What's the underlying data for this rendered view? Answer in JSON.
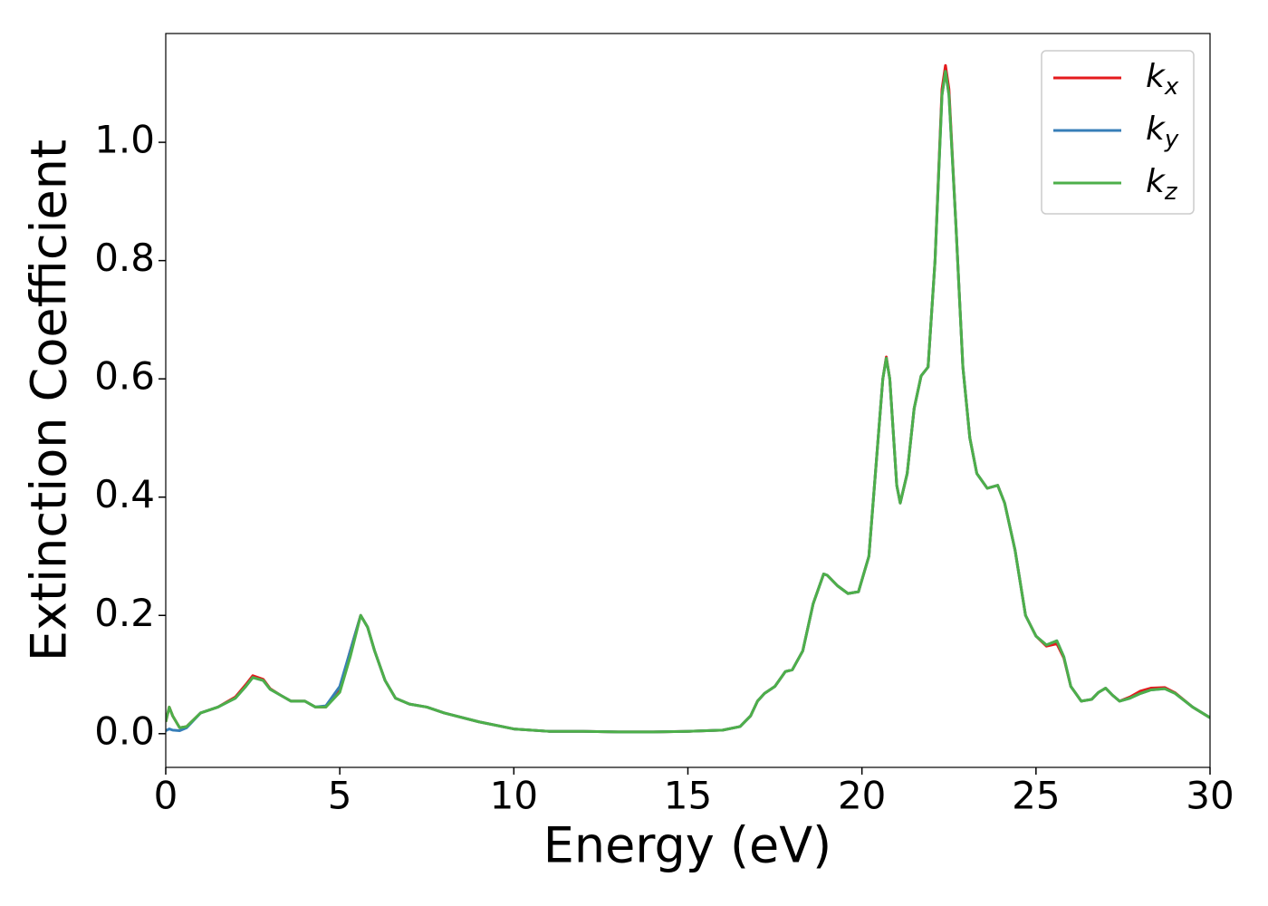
{
  "chart_data": {
    "type": "line",
    "x_label": "Energy (eV)",
    "y_label": "Extinction Coefficient",
    "x": [
      0,
      0.1,
      0.2,
      0.4,
      0.6,
      1.0,
      1.5,
      2.0,
      2.3,
      2.5,
      2.8,
      3.0,
      3.3,
      3.6,
      4.0,
      4.3,
      4.6,
      5.0,
      5.3,
      5.6,
      5.8,
      6.0,
      6.3,
      6.6,
      7.0,
      7.5,
      8.0,
      9.0,
      10,
      11,
      12,
      13,
      14,
      15,
      16,
      16.5,
      16.8,
      17.0,
      17.2,
      17.5,
      17.8,
      18.0,
      18.3,
      18.6,
      18.9,
      19.0,
      19.3,
      19.6,
      19.9,
      20.2,
      20.4,
      20.6,
      20.7,
      20.8,
      21.0,
      21.1,
      21.3,
      21.5,
      21.7,
      21.9,
      22.1,
      22.3,
      22.4,
      22.5,
      22.7,
      22.9,
      23.1,
      23.3,
      23.6,
      23.9,
      24.1,
      24.4,
      24.7,
      25.0,
      25.3,
      25.6,
      25.8,
      26.0,
      26.3,
      26.6,
      26.8,
      27.0,
      27.2,
      27.4,
      27.7,
      28.0,
      28.3,
      28.7,
      29.0,
      29.5,
      30
    ],
    "series": [
      {
        "name": "kx",
        "color": "#e41a1c",
        "values": [
          0.02,
          0.045,
          0.03,
          0.01,
          0.012,
          0.035,
          0.045,
          0.062,
          0.083,
          0.098,
          0.092,
          0.076,
          0.065,
          0.055,
          0.055,
          0.045,
          0.045,
          0.075,
          0.14,
          0.2,
          0.18,
          0.14,
          0.09,
          0.06,
          0.05,
          0.045,
          0.035,
          0.02,
          0.008,
          0.004,
          0.004,
          0.003,
          0.003,
          0.004,
          0.006,
          0.012,
          0.03,
          0.055,
          0.068,
          0.08,
          0.105,
          0.108,
          0.14,
          0.22,
          0.27,
          0.268,
          0.25,
          0.237,
          0.24,
          0.3,
          0.45,
          0.6,
          0.637,
          0.6,
          0.42,
          0.39,
          0.44,
          0.55,
          0.605,
          0.62,
          0.8,
          1.09,
          1.13,
          1.09,
          0.86,
          0.62,
          0.5,
          0.44,
          0.415,
          0.42,
          0.39,
          0.31,
          0.2,
          0.165,
          0.148,
          0.152,
          0.128,
          0.08,
          0.055,
          0.058,
          0.07,
          0.077,
          0.065,
          0.055,
          0.062,
          0.072,
          0.077,
          0.078,
          0.069,
          0.045,
          0.027
        ]
      },
      {
        "name": "ky",
        "color": "#377eb8",
        "values": [
          0.005,
          0.008,
          0.006,
          0.005,
          0.01,
          0.035,
          0.045,
          0.06,
          0.08,
          0.095,
          0.09,
          0.075,
          0.065,
          0.055,
          0.055,
          0.045,
          0.047,
          0.08,
          0.14,
          0.2,
          0.18,
          0.14,
          0.09,
          0.06,
          0.05,
          0.045,
          0.035,
          0.02,
          0.008,
          0.004,
          0.004,
          0.003,
          0.003,
          0.004,
          0.006,
          0.012,
          0.03,
          0.055,
          0.068,
          0.08,
          0.105,
          0.108,
          0.14,
          0.22,
          0.27,
          0.268,
          0.25,
          0.237,
          0.24,
          0.3,
          0.45,
          0.6,
          0.635,
          0.6,
          0.42,
          0.39,
          0.44,
          0.55,
          0.605,
          0.62,
          0.8,
          1.08,
          1.12,
          1.08,
          0.86,
          0.62,
          0.5,
          0.44,
          0.415,
          0.42,
          0.39,
          0.31,
          0.2,
          0.165,
          0.15,
          0.157,
          0.13,
          0.08,
          0.055,
          0.058,
          0.07,
          0.077,
          0.065,
          0.055,
          0.06,
          0.068,
          0.074,
          0.076,
          0.068,
          0.045,
          0.027
        ]
      },
      {
        "name": "kz",
        "color": "#4daf4a",
        "values": [
          0.02,
          0.045,
          0.03,
          0.01,
          0.012,
          0.035,
          0.045,
          0.06,
          0.08,
          0.095,
          0.09,
          0.075,
          0.065,
          0.055,
          0.055,
          0.045,
          0.045,
          0.07,
          0.13,
          0.2,
          0.18,
          0.14,
          0.09,
          0.06,
          0.05,
          0.045,
          0.035,
          0.02,
          0.008,
          0.004,
          0.004,
          0.003,
          0.003,
          0.004,
          0.006,
          0.012,
          0.03,
          0.055,
          0.068,
          0.08,
          0.105,
          0.108,
          0.14,
          0.22,
          0.27,
          0.268,
          0.25,
          0.237,
          0.24,
          0.3,
          0.45,
          0.6,
          0.635,
          0.6,
          0.42,
          0.39,
          0.44,
          0.55,
          0.605,
          0.62,
          0.8,
          1.08,
          1.12,
          1.08,
          0.86,
          0.62,
          0.5,
          0.44,
          0.415,
          0.42,
          0.39,
          0.31,
          0.2,
          0.165,
          0.15,
          0.157,
          0.13,
          0.08,
          0.055,
          0.058,
          0.07,
          0.077,
          0.065,
          0.055,
          0.06,
          0.068,
          0.074,
          0.076,
          0.068,
          0.045,
          0.027
        ]
      }
    ],
    "xlim": [
      0,
      30
    ],
    "xticks": [
      0,
      5,
      10,
      15,
      20,
      25,
      30
    ],
    "ylim": [
      -0.057,
      1.184
    ],
    "yticks": [
      {
        "value": 0,
        "label": "0.0"
      },
      0.2,
      0.4,
      0.6,
      0.8,
      {
        "value": 1,
        "label": "1.0"
      }
    ],
    "grid": false,
    "legend": "upper right"
  }
}
